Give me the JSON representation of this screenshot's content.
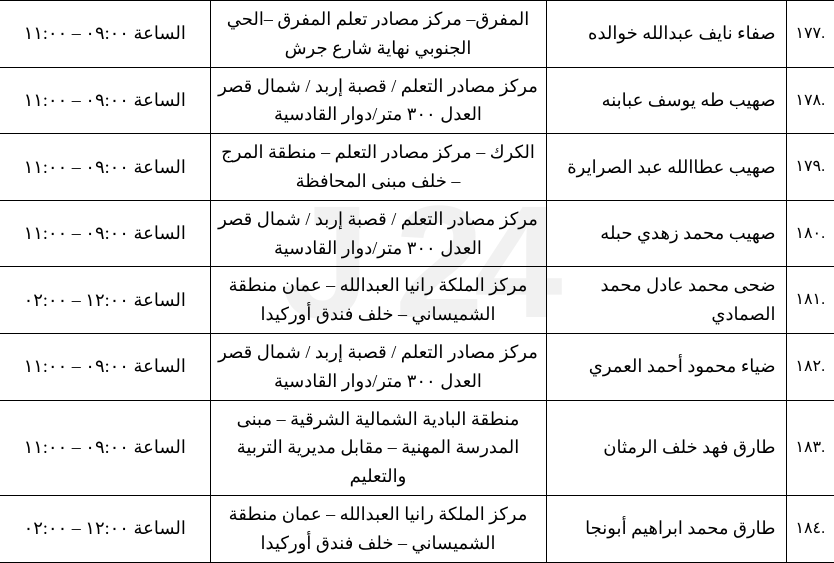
{
  "rows": [
    {
      "num": ".١٧٧",
      "name": "صفاء نايف عبدالله خوالده",
      "location": "المفرق– مركز مصادر تعلم المفرق –الحي الجنوبي نهاية شارع جرش",
      "time": "الساعة ٠٩:٠٠ – ١١:٠٠"
    },
    {
      "num": ".١٧٨",
      "name": "صهيب طه يوسف عبابنه",
      "location": "مركز مصادر التعلم / قصبة  إربد /  شمال قصر العدل ٣٠٠ متر/دوار القادسية",
      "time": "الساعة ٠٩:٠٠ – ١١:٠٠"
    },
    {
      "num": ".١٧٩",
      "name": "صهيب عطاالله عبد الصرايرة",
      "location": "الكرك – مركز مصادر التعلم – منطقة المرج – خلف مبنى المحافظة",
      "time": "الساعة ٠٩:٠٠ – ١١:٠٠"
    },
    {
      "num": ".١٨٠",
      "name": "صهيب محمد زهدي حبله",
      "location": "مركز مصادر التعلم / قصبة  إربد /  شمال قصر العدل ٣٠٠ متر/دوار القادسية",
      "time": "الساعة ٠٩:٠٠ – ١١:٠٠"
    },
    {
      "num": ".١٨١",
      "name": "ضحى محمد عادل محمد الصمادي",
      "location": "مركز الملكة رانيا العبدالله – عمان منطقة الشميساني – خلف فندق أوركيدا",
      "time": "الساعة ١٢:٠٠ – ٠٢:٠٠"
    },
    {
      "num": ".١٨٢",
      "name": "ضياء محمود أحمد العمري",
      "location": "مركز مصادر التعلم / قصبة  إربد /  شمال قصر العدل ٣٠٠ متر/دوار القادسية",
      "time": "الساعة ٠٩:٠٠ – ١١:٠٠"
    },
    {
      "num": ".١٨٣",
      "name": "طارق فهد خلف الرمثان",
      "location": "منطقة البادية الشمالية الشرقية – مبنى المدرسة المهنية – مقابل مديرية التربية والتعليم",
      "time": "الساعة ٠٩:٠٠ – ١١:٠٠"
    },
    {
      "num": ".١٨٤",
      "name": "طارق محمد ابراهيم أبونجا",
      "location": "مركز الملكة رانيا العبدالله – عمان منطقة الشميساني – خلف فندق أوركيدا",
      "time": "الساعة ١٢:٠٠ – ٠٢:٠٠"
    }
  ]
}
